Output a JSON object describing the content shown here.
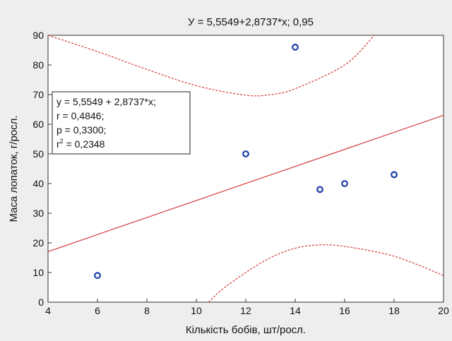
{
  "chart_data": {
    "type": "scatter",
    "title": "У = 5,5549+2,8737*x; 0,95",
    "xlabel": "Кількість бобів, шт/росл.",
    "ylabel": "Маса лопаток, г/росл.",
    "xlim": [
      4,
      20
    ],
    "ylim": [
      0,
      90
    ],
    "xticks": [
      4,
      6,
      8,
      10,
      12,
      14,
      16,
      18,
      20
    ],
    "yticks": [
      0,
      10,
      20,
      30,
      40,
      50,
      60,
      70,
      80,
      90
    ],
    "grid": false,
    "points": [
      {
        "x": 6,
        "y": 9
      },
      {
        "x": 12,
        "y": 50
      },
      {
        "x": 14,
        "y": 86
      },
      {
        "x": 15,
        "y": 38
      },
      {
        "x": 16,
        "y": 40
      },
      {
        "x": 18,
        "y": 43
      }
    ],
    "regression": {
      "intercept": 5.5549,
      "slope": 2.8737
    },
    "confidence_level": 0.95,
    "confidence_upper": [
      {
        "x": 4,
        "y": 90
      },
      {
        "x": 6,
        "y": 84.5
      },
      {
        "x": 8,
        "y": 78.5
      },
      {
        "x": 10,
        "y": 73
      },
      {
        "x": 12,
        "y": 69.8
      },
      {
        "x": 13,
        "y": 70
      },
      {
        "x": 14,
        "y": 72
      },
      {
        "x": 16,
        "y": 80
      },
      {
        "x": 17.2,
        "y": 90
      }
    ],
    "confidence_lower": [
      {
        "x": 10.5,
        "y": 0
      },
      {
        "x": 11,
        "y": 4
      },
      {
        "x": 12,
        "y": 10
      },
      {
        "x": 13,
        "y": 15
      },
      {
        "x": 14,
        "y": 18.2
      },
      {
        "x": 15,
        "y": 19.3
      },
      {
        "x": 16,
        "y": 18.8
      },
      {
        "x": 18,
        "y": 15.5
      },
      {
        "x": 20,
        "y": 9
      }
    ],
    "stats_box": {
      "position": "top-left",
      "lines": [
        "y = 5,5549 + 2,8737*x;",
        "r = 0,4846;",
        "p = 0,3300;"
      ],
      "r2_prefix": "r",
      "r2_sup": "2",
      "r2_suffix": " = 0,2348"
    },
    "colors": {
      "points": "#1a3ea8",
      "regression": "#d43a3a",
      "confidence": "#d43a3a",
      "background": "#eeeeee",
      "plot_background": "#ffffff"
    }
  }
}
